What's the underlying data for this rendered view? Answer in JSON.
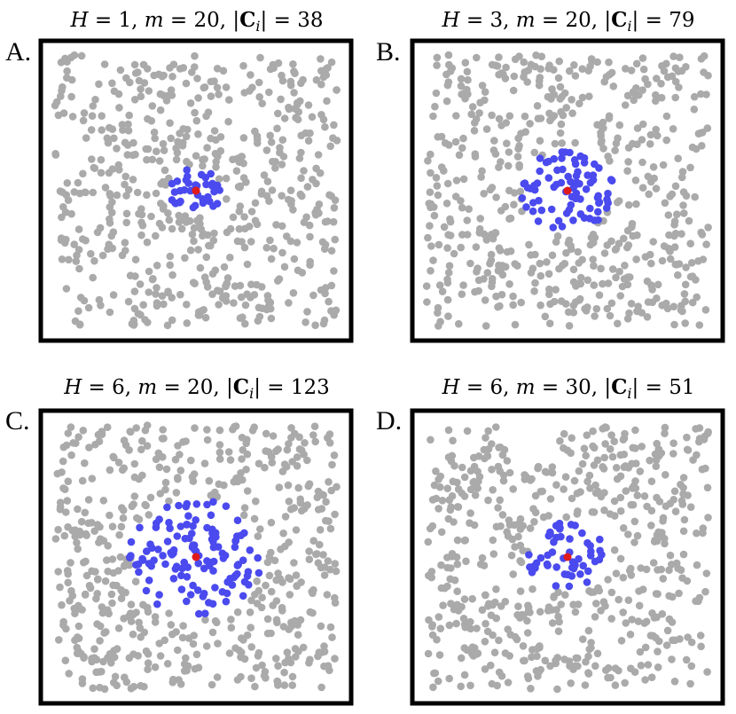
{
  "chart_data": [
    {
      "type": "scatter",
      "panel": "A.",
      "title": "H = 1, m = 20, |C_i| = 38",
      "title_parts": {
        "H_label": "H",
        "H": "1",
        "m_label": "m",
        "m": "20",
        "C_symbol": "C",
        "C_sub": "i",
        "size": "38"
      },
      "n_gray": 560,
      "n_blue": 38,
      "seed": 11,
      "cluster_radius": 0.085,
      "query_point": [
        0.5,
        0.5
      ],
      "colors": {
        "other": "#aaaaaa",
        "cluster": "#4a4aee",
        "query": "#e01b1b"
      }
    },
    {
      "type": "scatter",
      "panel": "B.",
      "title": "H = 3, m = 20, |C_i| = 79",
      "title_parts": {
        "H_label": "H",
        "H": "3",
        "m_label": "m",
        "m": "20",
        "C_symbol": "C",
        "C_sub": "i",
        "size": "79"
      },
      "n_gray": 540,
      "n_blue": 79,
      "seed": 23,
      "cluster_radius": 0.15,
      "query_point": [
        0.5,
        0.5
      ],
      "colors": {
        "other": "#aaaaaa",
        "cluster": "#4a4aee",
        "query": "#e01b1b"
      }
    },
    {
      "type": "scatter",
      "panel": "C.",
      "title": "H = 6, m = 20, |C_i| = 123",
      "title_parts": {
        "H_label": "H",
        "H": "6",
        "m_label": "m",
        "m": "20",
        "C_symbol": "C",
        "C_sub": "i",
        "size": "123"
      },
      "n_gray": 520,
      "n_blue": 123,
      "seed": 37,
      "cluster_radius": 0.22,
      "query_point": [
        0.5,
        0.5
      ],
      "colors": {
        "other": "#aaaaaa",
        "cluster": "#4a4aee",
        "query": "#e01b1b"
      }
    },
    {
      "type": "scatter",
      "panel": "D.",
      "title": "H = 6, m = 30, |C_i| = 51",
      "title_parts": {
        "H_label": "H",
        "H": "6",
        "m_label": "m",
        "m": "30",
        "C_symbol": "C",
        "C_sub": "i",
        "size": "51"
      },
      "n_gray": 550,
      "n_blue": 51,
      "seed": 53,
      "cluster_radius": 0.13,
      "query_point": [
        0.5,
        0.5
      ],
      "colors": {
        "other": "#aaaaaa",
        "cluster": "#4a4aee",
        "query": "#e01b1b"
      }
    }
  ]
}
